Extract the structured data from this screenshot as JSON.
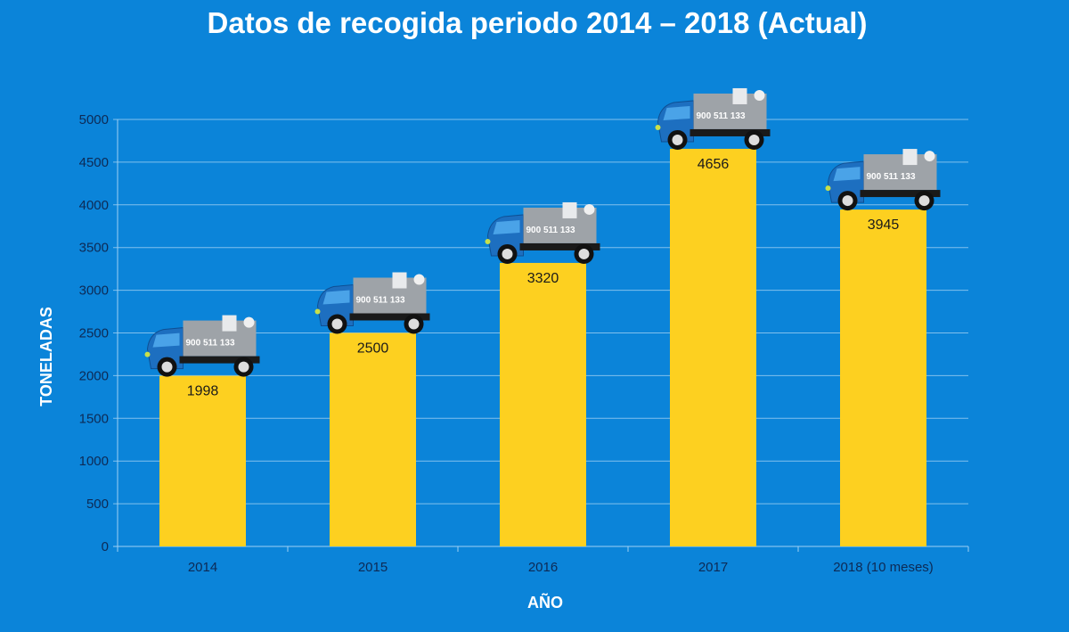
{
  "chart_data": {
    "type": "bar",
    "title": "Datos de recogida periodo 2014 – 2018 (Actual)",
    "xlabel": "AÑO",
    "ylabel": "TONELADAS",
    "categories": [
      "2014",
      "2015",
      "2016",
      "2017",
      "2018 (10 meses)"
    ],
    "values": [
      1998,
      2500,
      3320,
      4656,
      3945
    ],
    "data_labels": [
      "1998",
      "2500",
      "3320",
      "4656",
      "3945"
    ],
    "ylim": [
      0,
      5000
    ],
    "yticks": [
      0,
      500,
      1000,
      1500,
      2000,
      2500,
      3000,
      3500,
      4000,
      4500,
      5000
    ],
    "grid": true,
    "legend": "none",
    "bar_decoration": "truck-icon",
    "truck_logo_text": "900 511 133",
    "colors": {
      "background": "#0b84d9",
      "bar": "#fdd020",
      "grid": "#9fd0f2",
      "tick_text": "#0d2a55"
    }
  }
}
